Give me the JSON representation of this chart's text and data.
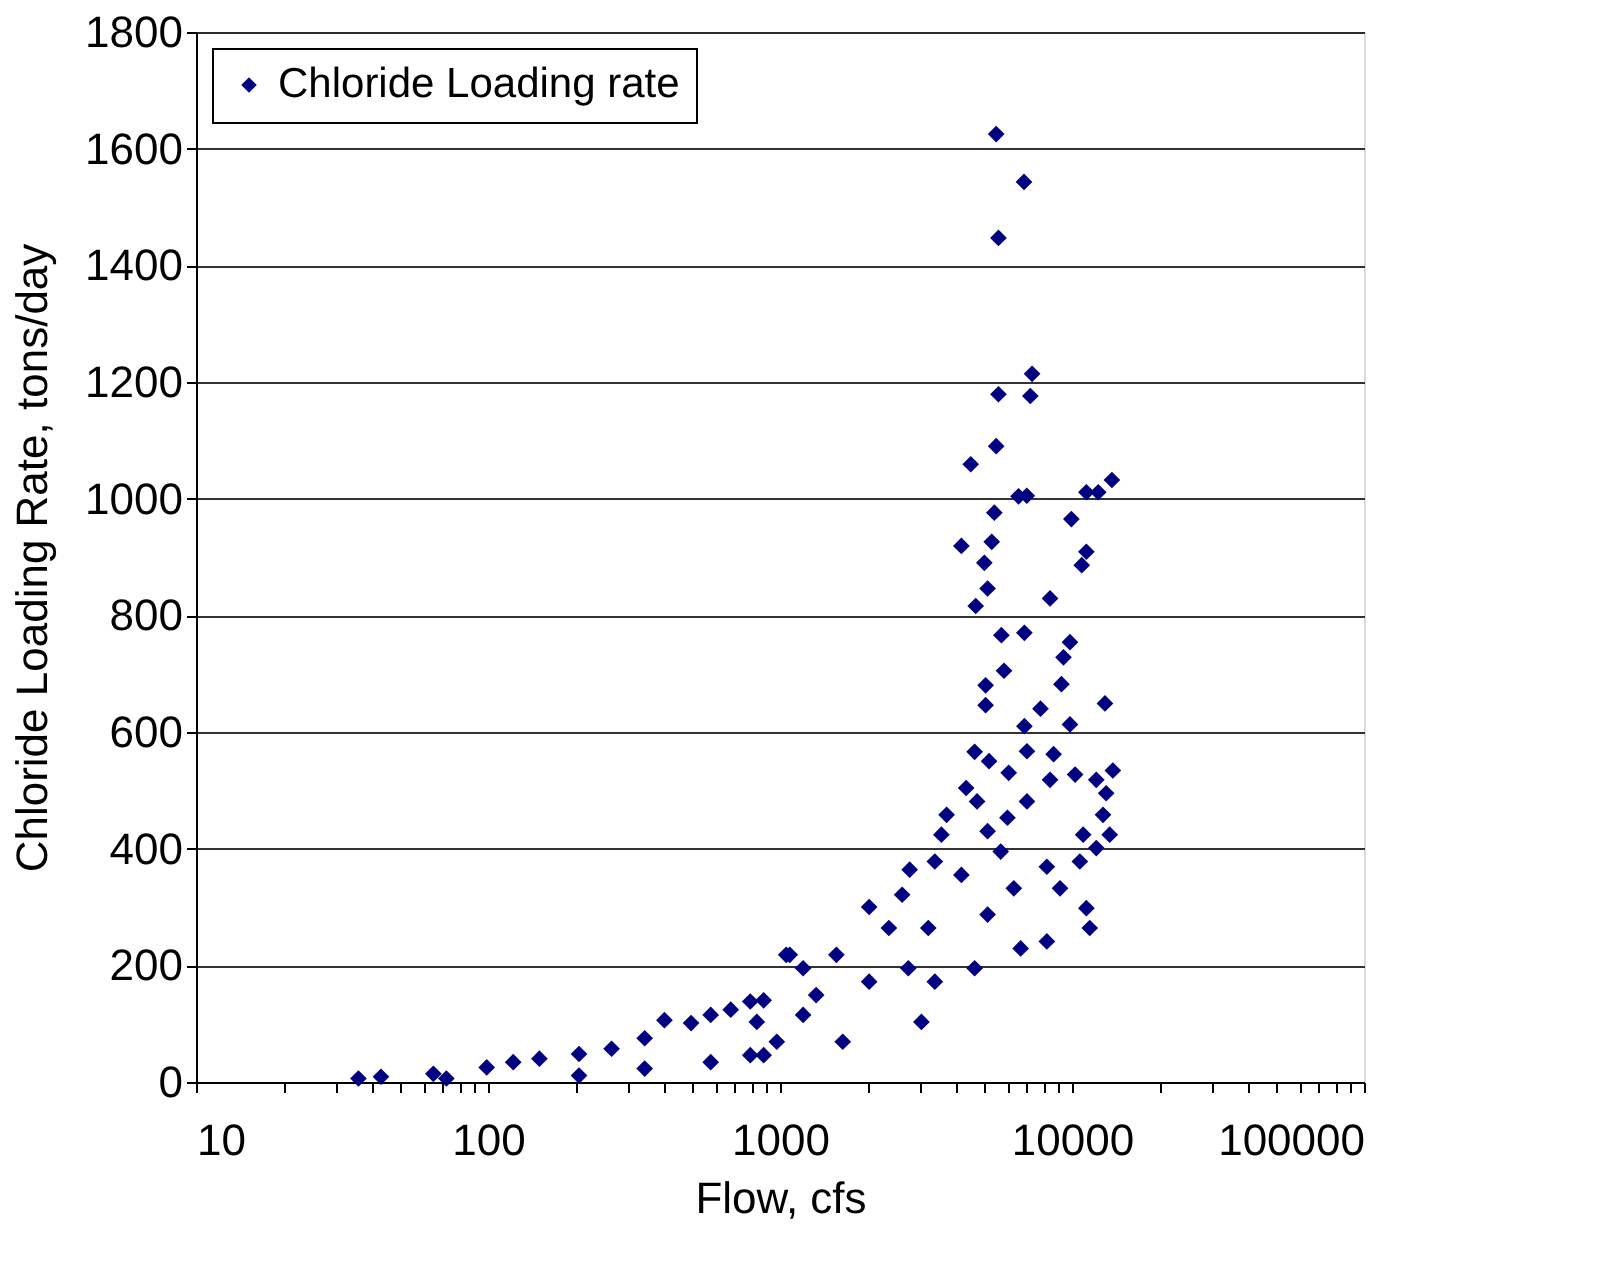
{
  "chart_data": {
    "type": "scatter",
    "xlabel": "Flow, cfs",
    "ylabel": "Chloride Loading Rate, tons/day",
    "log": "x",
    "xlim": [
      10,
      100000
    ],
    "xticks": [
      10,
      {
        "value": 20,
        "label": null
      },
      {
        "value": 30,
        "label": null
      },
      {
        "value": 40,
        "label": null
      },
      {
        "value": 50,
        "label": null
      },
      {
        "value": 60,
        "label": null
      },
      {
        "value": 70,
        "label": null
      },
      {
        "value": 80,
        "label": null
      },
      {
        "value": 90,
        "label": null
      },
      100,
      {
        "value": 200,
        "label": null
      },
      {
        "value": 300,
        "label": null
      },
      {
        "value": 400,
        "label": null
      },
      {
        "value": 500,
        "label": null
      },
      {
        "value": 600,
        "label": null
      },
      {
        "value": 700,
        "label": null
      },
      {
        "value": 800,
        "label": null
      },
      {
        "value": 900,
        "label": null
      },
      1000,
      {
        "value": 2000,
        "label": null
      },
      {
        "value": 3000,
        "label": null
      },
      {
        "value": 4000,
        "label": null
      },
      {
        "value": 5000,
        "label": null
      },
      {
        "value": 6000,
        "label": null
      },
      {
        "value": 7000,
        "label": null
      },
      {
        "value": 8000,
        "label": null
      },
      {
        "value": 9000,
        "label": null
      },
      10000,
      {
        "value": 20000,
        "label": null
      },
      {
        "value": 30000,
        "label": null
      },
      {
        "value": 40000,
        "label": null
      },
      {
        "value": 50000,
        "label": null
      },
      {
        "value": 60000,
        "label": null
      },
      {
        "value": 70000,
        "label": null
      },
      {
        "value": 80000,
        "label": null
      },
      {
        "value": 90000,
        "label": null
      },
      100000
    ],
    "ylim": [
      0,
      1800
    ],
    "yticks": [
      0,
      200,
      400,
      600,
      800,
      1000,
      1200,
      1400,
      1600,
      1800
    ],
    "grid": "y",
    "legend": "top left",
    "marker": "diamond",
    "series": [
      {
        "name": "Chloride Loading rate",
        "color": "#000080",
        "x": [
          5500,
          6850,
          5600,
          7300,
          5600,
          7200,
          5500,
          4500,
          7000,
          13700,
          12300,
          6560,
          11200,
          5420,
          4180,
          5310,
          9950,
          5010,
          11200,
          10800,
          5140,
          4680,
          8410,
          5730,
          6870,
          9840,
          9350,
          5850,
          5060,
          9200,
          5060,
          12970,
          7800,
          9840,
          6870,
          4640,
          5200,
          7010,
          8650,
          13800,
          4340,
          6070,
          8410,
          10250,
          12110,
          4730,
          3720,
          7010,
          13090,
          6010,
          12770,
          13460,
          5140,
          3570,
          10920,
          12110,
          2780,
          3390,
          5700,
          8200,
          10640,
          2020,
          2620,
          4180,
          6320,
          9100,
          11200,
          11500,
          8200,
          6670,
          5140,
          3220,
          2360,
          1560,
          1080,
          4640,
          3390,
          2750,
          2020,
          1330,
          3050,
          1640,
          975,
          1200,
          833,
          791,
          36,
          43,
          65,
          99,
          122,
          150,
          205,
          265,
          344,
          402,
          496,
          579,
          678,
          791,
          879,
          1050,
          1200,
          344,
          579,
          879,
          205,
          72
        ],
        "values": [
          1625,
          1543,
          1447,
          1214,
          1179,
          1176,
          1090,
          1059,
          1005,
          1032,
          1011,
          1004,
          1011,
          976,
          919,
          926,
          965,
          890,
          909,
          886,
          846,
          816,
          829,
          766,
          770,
          754,
          728,
          705,
          680,
          682,
          646,
          649,
          640,
          613,
          610,
          566,
          550,
          567,
          562,
          534,
          504,
          530,
          518,
          527,
          518,
          481,
          458,
          481,
          495,
          453,
          458,
          424,
          430,
          424,
          424,
          401,
          364,
          378,
          395,
          369,
          378,
          300,
          321,
          355,
          332,
          332,
          298,
          264,
          241,
          229,
          287,
          264,
          264,
          218,
          218,
          195,
          172,
          195,
          172,
          149,
          103,
          69,
          69,
          115,
          103,
          46,
          6,
          9,
          14,
          25,
          34,
          40,
          48,
          57,
          75,
          106,
          101,
          115,
          124,
          138,
          140,
          218,
          195,
          23,
          34,
          46,
          11,
          6
        ]
      }
    ]
  }
}
